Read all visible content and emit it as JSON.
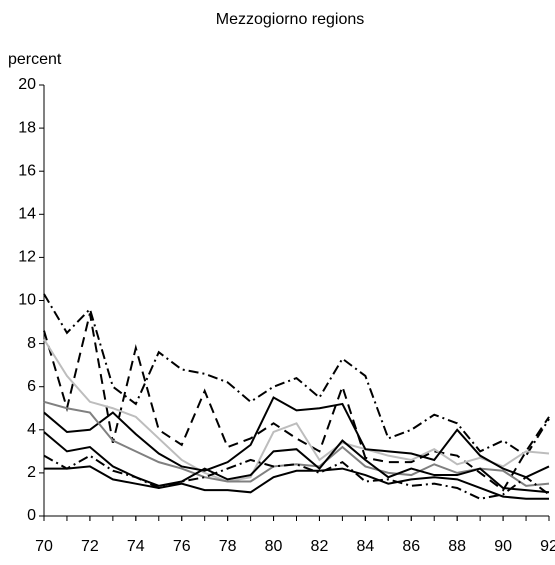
{
  "chart_data": {
    "type": "line",
    "title": "Mezzogiorno regions",
    "y_label": "percent",
    "x": [
      70,
      71,
      72,
      73,
      74,
      75,
      76,
      77,
      78,
      79,
      80,
      81,
      82,
      83,
      84,
      85,
      86,
      87,
      88,
      89,
      90,
      91,
      92
    ],
    "xlim": [
      70,
      92
    ],
    "xticks": [
      70,
      72,
      74,
      76,
      78,
      80,
      82,
      84,
      86,
      88,
      90,
      92
    ],
    "ylim": [
      0,
      20
    ],
    "yticks": [
      0,
      2,
      4,
      6,
      8,
      10,
      12,
      14,
      16,
      18,
      20
    ],
    "grid": false,
    "series": [
      {
        "color": "#000000",
        "style": "dashdot",
        "values": [
          10.3,
          8.5,
          9.6,
          6.0,
          5.2,
          7.6,
          6.8,
          6.6,
          6.2,
          5.3,
          6.0,
          6.4,
          5.5,
          7.3,
          6.5,
          3.6,
          4.0,
          4.7,
          4.3,
          3.0,
          3.5,
          2.8,
          4.5
        ]
      },
      {
        "color": "#000000",
        "style": "dashed",
        "values": [
          8.6,
          5.0,
          9.4,
          3.4,
          7.8,
          4.0,
          3.3,
          5.8,
          3.2,
          3.6,
          4.3,
          3.6,
          3.0,
          6.0,
          2.7,
          2.5,
          2.5,
          3.0,
          2.8,
          2.0,
          1.2,
          3.0,
          4.6
        ]
      },
      {
        "color": "#bdbdbd",
        "style": "solid",
        "values": [
          8.2,
          6.5,
          5.3,
          5.0,
          4.6,
          3.6,
          2.6,
          2.0,
          1.6,
          1.8,
          3.9,
          4.3,
          2.6,
          3.4,
          3.1,
          2.8,
          2.6,
          3.1,
          2.4,
          2.7,
          2.3,
          3.0,
          2.9
        ]
      },
      {
        "color": "#000000",
        "style": "solid",
        "values": [
          4.8,
          3.9,
          4.0,
          4.8,
          3.8,
          2.9,
          2.3,
          2.1,
          2.5,
          3.3,
          5.5,
          4.9,
          5.0,
          5.2,
          3.1,
          3.0,
          2.9,
          2.6,
          4.0,
          2.8,
          2.2,
          1.8,
          2.3
        ]
      },
      {
        "color": "#808080",
        "style": "solid",
        "values": [
          5.3,
          5.0,
          4.8,
          3.5,
          3.0,
          2.5,
          2.2,
          1.8,
          1.6,
          1.6,
          2.3,
          2.4,
          2.3,
          3.2,
          2.3,
          2.0,
          1.9,
          2.4,
          2.0,
          2.2,
          2.1,
          1.4,
          1.5
        ]
      },
      {
        "color": "#000000",
        "style": "solid",
        "values": [
          3.9,
          3.0,
          3.2,
          2.3,
          1.8,
          1.4,
          1.6,
          2.2,
          1.7,
          1.9,
          3.0,
          3.1,
          2.2,
          3.5,
          2.6,
          1.8,
          2.2,
          1.9,
          1.9,
          2.2,
          1.3,
          1.2,
          1.1
        ]
      },
      {
        "color": "#000000",
        "style": "solid",
        "values": [
          2.2,
          2.2,
          2.3,
          1.7,
          1.5,
          1.3,
          1.5,
          1.2,
          1.2,
          1.1,
          1.8,
          2.1,
          2.1,
          2.2,
          1.9,
          1.5,
          1.7,
          1.8,
          1.7,
          1.3,
          0.9,
          0.8,
          0.8
        ]
      },
      {
        "color": "#000000",
        "style": "dashdot",
        "values": [
          2.8,
          2.2,
          2.8,
          2.1,
          1.8,
          1.3,
          1.6,
          1.8,
          2.2,
          2.6,
          2.3,
          2.4,
          2.0,
          2.5,
          1.6,
          1.7,
          1.4,
          1.5,
          1.3,
          0.8,
          1.0,
          1.8,
          1.0
        ]
      }
    ]
  }
}
